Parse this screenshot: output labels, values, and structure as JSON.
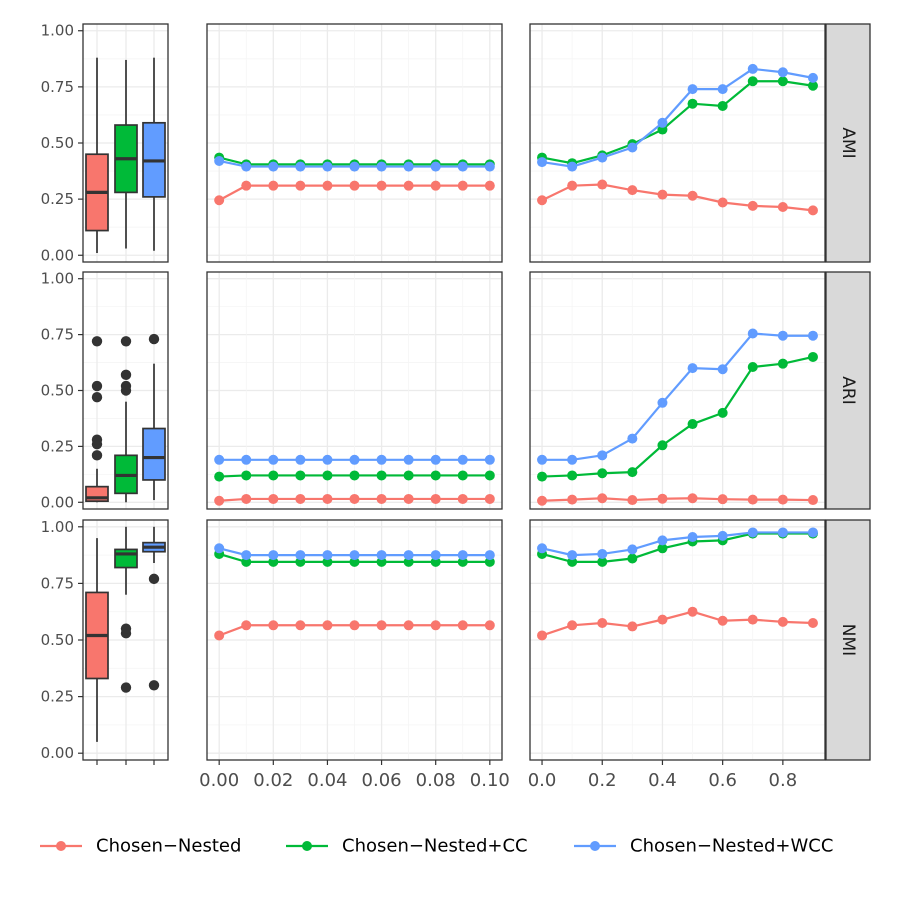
{
  "chart_data": {
    "type": "faceted-line-and-box",
    "series_names": [
      "Chosen−Nested",
      "Chosen−Nested+CC",
      "Chosen−Nested+WCC"
    ],
    "colors": {
      "Chosen−Nested": "#F8766D",
      "Chosen−Nested+CC": "#00BA38",
      "Chosen−Nested+WCC": "#619CFF"
    },
    "metrics": [
      "AMI",
      "ARI",
      "NMI"
    ],
    "y_axis": {
      "range": [
        -0.03,
        1.03
      ],
      "ticks": [
        0.0,
        0.25,
        0.5,
        0.75,
        1.0
      ],
      "tick_labels": [
        "0.00",
        "0.25",
        "0.50",
        "0.75",
        "1.00"
      ]
    },
    "x_axis_small": {
      "range": [
        -0.0045,
        0.1045
      ],
      "ticks": [
        0.0,
        0.02,
        0.04,
        0.06,
        0.08,
        0.1
      ],
      "tick_labels": [
        "0.00",
        "0.02",
        "0.04",
        "0.06",
        "0.08",
        "0.10"
      ],
      "x": [
        0.0,
        0.01,
        0.02,
        0.03,
        0.04,
        0.05,
        0.06,
        0.07,
        0.08,
        0.09,
        0.1
      ]
    },
    "x_axis_large": {
      "range": [
        -0.04,
        0.94
      ],
      "ticks": [
        0.0,
        0.2,
        0.4,
        0.6,
        0.8
      ],
      "tick_labels": [
        "0.0",
        "0.2",
        "0.4",
        "0.6",
        "0.8"
      ],
      "x": [
        0.0,
        0.1,
        0.2,
        0.3,
        0.4,
        0.5,
        0.6,
        0.7,
        0.8,
        0.9
      ]
    },
    "small_panel": {
      "AMI": {
        "Chosen−Nested": [
          0.245,
          0.31,
          0.31,
          0.31,
          0.31,
          0.31,
          0.31,
          0.31,
          0.31,
          0.31,
          0.31
        ],
        "Chosen−Nested+CC": [
          0.435,
          0.405,
          0.405,
          0.405,
          0.405,
          0.405,
          0.405,
          0.405,
          0.405,
          0.405,
          0.405
        ],
        "Chosen−Nested+WCC": [
          0.42,
          0.395,
          0.395,
          0.395,
          0.395,
          0.395,
          0.395,
          0.395,
          0.395,
          0.395,
          0.395
        ]
      },
      "ARI": {
        "Chosen−Nested": [
          0.007,
          0.015,
          0.015,
          0.015,
          0.015,
          0.015,
          0.015,
          0.015,
          0.015,
          0.015,
          0.015
        ],
        "Chosen−Nested+CC": [
          0.115,
          0.12,
          0.12,
          0.12,
          0.12,
          0.12,
          0.12,
          0.12,
          0.12,
          0.12,
          0.12
        ],
        "Chosen−Nested+WCC": [
          0.19,
          0.19,
          0.19,
          0.19,
          0.19,
          0.19,
          0.19,
          0.19,
          0.19,
          0.19,
          0.19
        ]
      },
      "NMI": {
        "Chosen−Nested": [
          0.52,
          0.565,
          0.565,
          0.565,
          0.565,
          0.565,
          0.565,
          0.565,
          0.565,
          0.565,
          0.565
        ],
        "Chosen−Nested+CC": [
          0.88,
          0.845,
          0.845,
          0.845,
          0.845,
          0.845,
          0.845,
          0.845,
          0.845,
          0.845,
          0.845
        ],
        "Chosen−Nested+WCC": [
          0.905,
          0.875,
          0.875,
          0.875,
          0.875,
          0.875,
          0.875,
          0.875,
          0.875,
          0.875,
          0.875
        ]
      }
    },
    "large_panel": {
      "AMI": {
        "Chosen−Nested": [
          0.245,
          0.31,
          0.315,
          0.29,
          0.27,
          0.265,
          0.235,
          0.22,
          0.215,
          0.2
        ],
        "Chosen−Nested+CC": [
          0.435,
          0.41,
          0.445,
          0.495,
          0.56,
          0.675,
          0.665,
          0.775,
          0.775,
          0.755
        ],
        "Chosen−Nested+WCC": [
          0.415,
          0.395,
          0.435,
          0.48,
          0.59,
          0.74,
          0.74,
          0.83,
          0.815,
          0.79
        ]
      },
      "ARI": {
        "Chosen−Nested": [
          0.007,
          0.012,
          0.018,
          0.01,
          0.016,
          0.018,
          0.014,
          0.012,
          0.012,
          0.01
        ],
        "Chosen−Nested+CC": [
          0.115,
          0.12,
          0.13,
          0.135,
          0.255,
          0.35,
          0.4,
          0.605,
          0.62,
          0.65
        ],
        "Chosen−Nested+WCC": [
          0.19,
          0.19,
          0.21,
          0.285,
          0.445,
          0.6,
          0.595,
          0.755,
          0.745,
          0.745
        ]
      },
      "NMI": {
        "Chosen−Nested": [
          0.52,
          0.565,
          0.575,
          0.56,
          0.59,
          0.625,
          0.585,
          0.59,
          0.58,
          0.575
        ],
        "Chosen−Nested+CC": [
          0.88,
          0.845,
          0.845,
          0.86,
          0.905,
          0.935,
          0.94,
          0.97,
          0.97,
          0.97
        ],
        "Chosen−Nested+WCC": [
          0.905,
          0.875,
          0.88,
          0.9,
          0.94,
          0.955,
          0.96,
          0.975,
          0.975,
          0.975
        ]
      }
    },
    "boxplots": {
      "AMI": [
        {
          "series": "Chosen−Nested",
          "min": 0.01,
          "q1": 0.11,
          "median": 0.28,
          "q3": 0.45,
          "max": 0.88,
          "outliers": []
        },
        {
          "series": "Chosen−Nested+CC",
          "min": 0.03,
          "q1": 0.28,
          "median": 0.43,
          "q3": 0.58,
          "max": 0.87,
          "outliers": []
        },
        {
          "series": "Chosen−Nested+WCC",
          "min": 0.02,
          "q1": 0.26,
          "median": 0.42,
          "q3": 0.59,
          "max": 0.88,
          "outliers": []
        }
      ],
      "ARI": [
        {
          "series": "Chosen−Nested",
          "min": 0.0,
          "q1": 0.005,
          "median": 0.02,
          "q3": 0.07,
          "max": 0.15,
          "outliers": [
            0.21,
            0.26,
            0.28,
            0.47,
            0.52,
            0.72
          ]
        },
        {
          "series": "Chosen−Nested+CC",
          "min": 0.0,
          "q1": 0.04,
          "median": 0.12,
          "q3": 0.21,
          "max": 0.45,
          "outliers": [
            0.5,
            0.52,
            0.57,
            0.72
          ]
        },
        {
          "series": "Chosen−Nested+WCC",
          "min": 0.01,
          "q1": 0.1,
          "median": 0.2,
          "q3": 0.33,
          "max": 0.62,
          "outliers": [
            0.73
          ]
        }
      ],
      "NMI": [
        {
          "series": "Chosen−Nested",
          "min": 0.05,
          "q1": 0.33,
          "median": 0.52,
          "q3": 0.71,
          "max": 0.95,
          "outliers": []
        },
        {
          "series": "Chosen−Nested+CC",
          "min": 0.7,
          "q1": 0.82,
          "median": 0.88,
          "q3": 0.9,
          "max": 1.0,
          "outliers": [
            0.29,
            0.53,
            0.55
          ]
        },
        {
          "series": "Chosen−Nested+WCC",
          "min": 0.84,
          "q1": 0.89,
          "median": 0.91,
          "q3": 0.93,
          "max": 1.0,
          "outliers": [
            0.3,
            0.77
          ]
        }
      ]
    },
    "legend": {
      "position": "bottom",
      "entries": [
        "Chosen−Nested",
        "Chosen−Nested+CC",
        "Chosen−Nested+WCC"
      ]
    }
  }
}
